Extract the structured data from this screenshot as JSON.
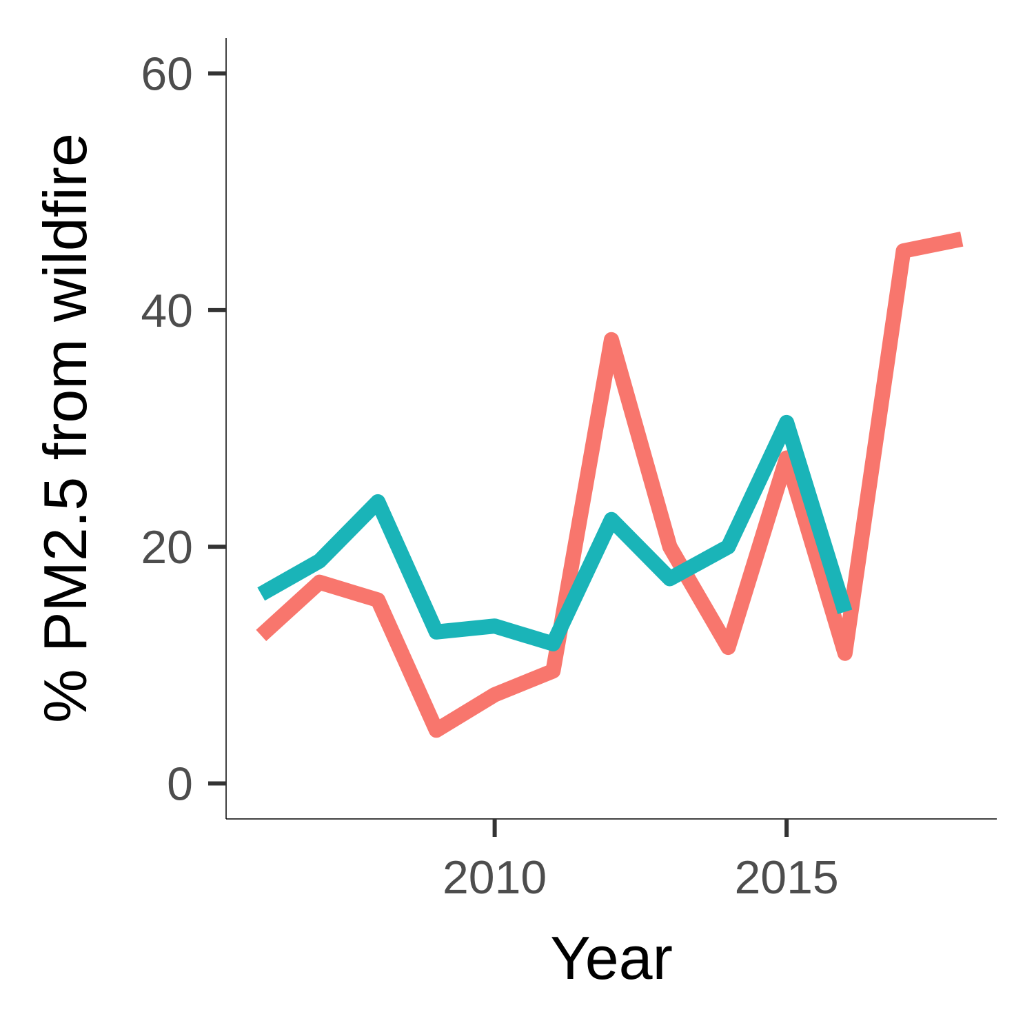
{
  "chart_data": {
    "type": "line",
    "title": "",
    "xlabel": "Year",
    "ylabel": "% PM2.5 from wildfire",
    "xlim": [
      2005.4,
      2018.6
    ],
    "ylim": [
      -3,
      63
    ],
    "x_ticks": [
      2010,
      2015
    ],
    "x_tick_labels": [
      "2010",
      "2015"
    ],
    "y_ticks": [
      0,
      20,
      40,
      60
    ],
    "y_tick_labels": [
      "0",
      "20",
      "40",
      "60"
    ],
    "grid": false,
    "legend": "none",
    "series": [
      {
        "color": "#F8766D",
        "x": [
          2006,
          2007,
          2008,
          2009,
          2010,
          2011,
          2012,
          2013,
          2014,
          2015,
          2016,
          2017,
          2018
        ],
        "values": [
          12.5,
          17.0,
          15.5,
          4.5,
          7.5,
          9.5,
          37.5,
          20.0,
          11.5,
          27.5,
          11.0,
          45.0,
          46.0
        ]
      },
      {
        "color": "#1AB4B8",
        "x": [
          2006,
          2007,
          2008,
          2009,
          2010,
          2011,
          2012,
          2013,
          2014,
          2015,
          2016
        ],
        "values": [
          16.0,
          18.8,
          23.8,
          12.8,
          13.3,
          11.8,
          22.3,
          17.3,
          20.0,
          30.5,
          14.5
        ]
      }
    ]
  }
}
